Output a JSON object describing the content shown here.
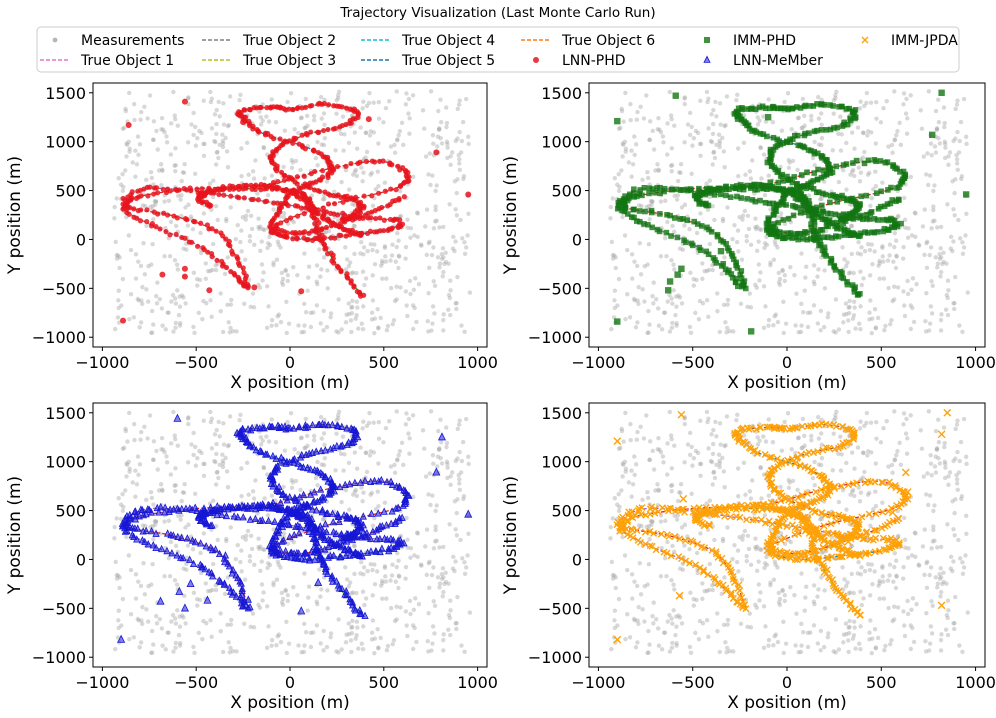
{
  "chart_data": {
    "type": "scatter",
    "title": "Trajectory Visualization (Last Monte Carlo Run)",
    "xlabel": "X position (m)",
    "ylabel": "Y position (m)",
    "xlim": [
      -1050,
      1050
    ],
    "ylim": [
      -1100,
      1600
    ],
    "xticks": [
      -1000,
      -500,
      0,
      500,
      1000
    ],
    "yticks": [
      -1000,
      -500,
      0,
      500,
      1000,
      1500
    ],
    "xtick_labels": [
      "−1000",
      "−500",
      "0",
      "500",
      "1000"
    ],
    "ytick_labels": [
      "−1000",
      "−500",
      "0",
      "500",
      "1000",
      "1500"
    ],
    "legend": [
      {
        "label": "Measurements",
        "kind": "marker",
        "marker": "circle",
        "color": "#a9a9a9"
      },
      {
        "label": "True Object 1",
        "kind": "line",
        "color": "#e377c2"
      },
      {
        "label": "True Object 2",
        "kind": "line",
        "color": "#7f7f7f"
      },
      {
        "label": "True Object 3",
        "kind": "line",
        "color": "#bcbd22"
      },
      {
        "label": "True Object 4",
        "kind": "line",
        "color": "#17becf"
      },
      {
        "label": "True Object 5",
        "kind": "line",
        "color": "#1f77b4"
      },
      {
        "label": "True Object 6",
        "kind": "line",
        "color": "#ff7f0e"
      },
      {
        "label": "LNN-PHD",
        "kind": "marker",
        "marker": "circle",
        "color": "#e8141c"
      },
      {
        "label": "IMM-PHD",
        "kind": "marker",
        "marker": "square",
        "color": "#127512"
      },
      {
        "label": "LNN-MeMber",
        "kind": "marker",
        "marker": "triangle",
        "color": "#1616d6"
      },
      {
        "label": "IMM-JPDA",
        "kind": "marker",
        "marker": "x",
        "color": "#ffa20a"
      }
    ],
    "truth": [
      {
        "name": "True Object 1",
        "color": "#d62728",
        "points": [
          [
            -220,
            -500
          ],
          [
            -280,
            -200
          ],
          [
            -390,
            80
          ],
          [
            -620,
            240
          ],
          [
            -860,
            330
          ],
          [
            -800,
            440
          ],
          [
            -500,
            520
          ],
          [
            -120,
            560
          ],
          [
            200,
            720
          ],
          [
            480,
            800
          ],
          [
            620,
            670
          ],
          [
            560,
            520
          ],
          [
            200,
            350
          ],
          [
            -80,
            140
          ],
          [
            40,
            60
          ],
          [
            200,
            120
          ],
          [
            440,
            280
          ],
          [
            600,
            420
          ]
        ]
      },
      {
        "name": "True Object 2",
        "color": "#8c564b",
        "points": [
          [
            -250,
            1330
          ],
          [
            -100,
            1350
          ],
          [
            20,
            1340
          ],
          [
            190,
            1380
          ],
          [
            350,
            1310
          ],
          [
            300,
            1170
          ],
          [
            100,
            1080
          ],
          [
            -60,
            940
          ],
          [
            -90,
            780
          ],
          [
            0,
            620
          ],
          [
            180,
            480
          ],
          [
            320,
            420
          ],
          [
            380,
            340
          ],
          [
            340,
            250
          ],
          [
            280,
            200
          ]
        ]
      },
      {
        "name": "True Object 3",
        "color": "#2ca02c",
        "points": [
          [
            -480,
            440
          ],
          [
            -420,
            500
          ],
          [
            -180,
            520
          ],
          [
            0,
            500
          ],
          [
            100,
            420
          ],
          [
            130,
            250
          ],
          [
            150,
            60
          ],
          [
            210,
            -150
          ],
          [
            300,
            -380
          ],
          [
            390,
            -580
          ]
        ]
      },
      {
        "name": "True Object 4",
        "color": "#1f77b4",
        "points": [
          [
            -270,
            1300
          ],
          [
            -240,
            1220
          ],
          [
            -140,
            1080
          ],
          [
            80,
            950
          ],
          [
            200,
            820
          ],
          [
            220,
            680
          ],
          [
            100,
            560
          ],
          [
            0,
            470
          ],
          [
            -60,
            300
          ],
          [
            -100,
            120
          ],
          [
            -50,
            40
          ],
          [
            100,
            0
          ],
          [
            300,
            40
          ],
          [
            500,
            90
          ],
          [
            600,
            160
          ]
        ]
      },
      {
        "name": "True Object 5",
        "color": "#9467bd",
        "points": [
          [
            -240,
            -480
          ],
          [
            -330,
            -300
          ],
          [
            -490,
            -60
          ],
          [
            -730,
            140
          ],
          [
            -890,
            330
          ],
          [
            -780,
            510
          ],
          [
            -530,
            500
          ],
          [
            -240,
            420
          ],
          [
            0,
            350
          ],
          [
            200,
            280
          ],
          [
            400,
            220
          ],
          [
            580,
            200
          ]
        ]
      },
      {
        "name": "True Object 6",
        "color": "#ff7f0e",
        "points": [
          [
            -420,
            340
          ],
          [
            -480,
            430
          ],
          [
            -350,
            520
          ],
          [
            -150,
            550
          ],
          [
            -20,
            500
          ],
          [
            60,
            430
          ],
          [
            130,
            300
          ],
          [
            200,
            200
          ],
          [
            300,
            100
          ],
          [
            380,
            40
          ]
        ]
      }
    ],
    "panels": [
      {
        "tracker": "LNN-PHD",
        "color": "#e8141c",
        "marker": "circle",
        "clutter": [
          [
            -560,
            1410
          ],
          [
            -860,
            1170
          ],
          [
            -250,
            1200
          ],
          [
            -120,
            1080
          ],
          [
            780,
            890
          ],
          [
            950,
            460
          ],
          [
            -680,
            -360
          ],
          [
            -560,
            -380
          ],
          [
            -430,
            -520
          ],
          [
            -190,
            -490
          ],
          [
            60,
            -530
          ],
          [
            -890,
            -830
          ],
          [
            -560,
            -300
          ],
          [
            420,
            1230
          ]
        ]
      },
      {
        "tracker": "IMM-PHD",
        "color": "#127512",
        "marker": "square",
        "clutter": [
          [
            -590,
            1470
          ],
          [
            -900,
            1210
          ],
          [
            -100,
            1250
          ],
          [
            820,
            1500
          ],
          [
            770,
            1070
          ],
          [
            950,
            460
          ],
          [
            -580,
            -360
          ],
          [
            -620,
            -430
          ],
          [
            -900,
            -840
          ],
          [
            -190,
            -940
          ],
          [
            -560,
            -300
          ],
          [
            -350,
            -120
          ],
          [
            -630,
            -520
          ]
        ]
      },
      {
        "tracker": "LNN-MeMber",
        "color": "#1616d6",
        "marker": "triangle",
        "clutter": [
          [
            -600,
            1440
          ],
          [
            810,
            1250
          ],
          [
            780,
            890
          ],
          [
            950,
            460
          ],
          [
            -470,
            -80
          ],
          [
            -530,
            -250
          ],
          [
            -590,
            -330
          ],
          [
            -690,
            -430
          ],
          [
            -440,
            -420
          ],
          [
            -900,
            -820
          ],
          [
            -560,
            -500
          ],
          [
            150,
            -240
          ],
          [
            60,
            -530
          ],
          [
            480,
            330
          ]
        ]
      },
      {
        "tracker": "IMM-JPDA",
        "color": "#ffa20a",
        "marker": "x",
        "clutter": [
          [
            -560,
            1480
          ],
          [
            -900,
            1210
          ],
          [
            850,
            1500
          ],
          [
            820,
            1280
          ],
          [
            630,
            890
          ],
          [
            640,
            690
          ],
          [
            250,
            730
          ],
          [
            -570,
            -370
          ],
          [
            -550,
            620
          ],
          [
            -900,
            -820
          ],
          [
            820,
            -470
          ],
          [
            560,
            480
          ]
        ]
      }
    ]
  }
}
